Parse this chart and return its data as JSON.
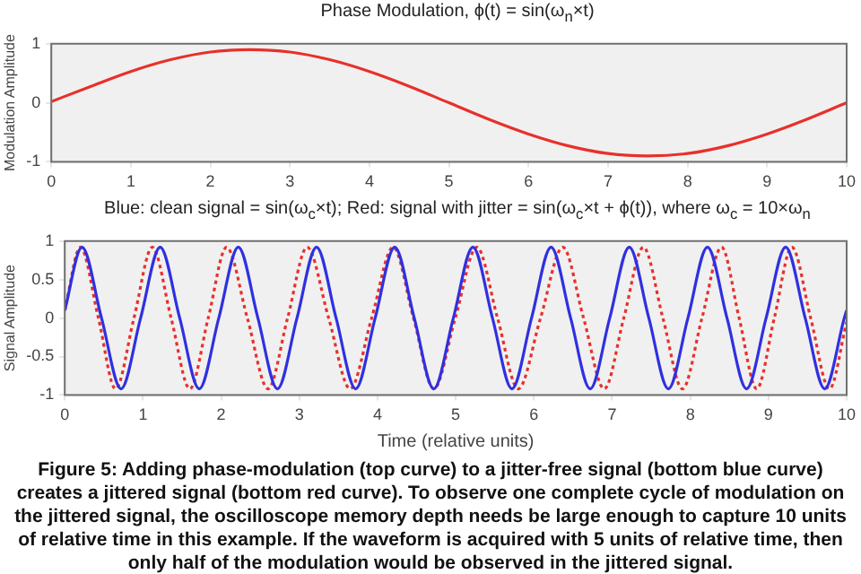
{
  "chart_data": [
    {
      "type": "line",
      "title": "Phase Modulation, ϕ(t) = sin(ω$_{n}$×t)",
      "ylabel": "Modulation Amplitude",
      "xlim": [
        0,
        10
      ],
      "xticks": [
        0,
        1,
        2,
        3,
        4,
        5,
        6,
        7,
        8,
        9,
        10
      ],
      "ylim": [
        -1,
        1
      ],
      "yticks": [
        -1,
        0,
        1
      ],
      "grid": false,
      "legend": false,
      "series": [
        {
          "color": "#e8302a",
          "x": [
            0,
            0.5,
            1,
            1.5,
            2,
            2.5,
            3,
            3.5,
            4,
            4.5,
            5,
            5.5,
            6,
            6.5,
            7,
            7.5,
            8,
            8.5,
            9,
            9.5,
            10
          ],
          "values": [
            0.02,
            0.28,
            0.53,
            0.73,
            0.86,
            0.9,
            0.86,
            0.73,
            0.53,
            0.28,
            0,
            -0.28,
            -0.53,
            -0.73,
            -0.86,
            -0.9,
            -0.86,
            -0.73,
            -0.53,
            -0.28,
            0
          ]
        }
      ]
    },
    {
      "type": "line",
      "title": "Blue: clean signal = sin(ω$_{c}$×t); Red: signal with jitter = sin(ω$_{c}$×t + ϕ(t)), where ω$_{c}$ = 10×ω$_{n}$",
      "xlabel": "Time (relative units)",
      "ylabel": "Signal Amplitude",
      "xlim": [
        0,
        10
      ],
      "xticks": [
        0,
        1,
        2,
        3,
        4,
        5,
        6,
        7,
        8,
        9,
        10
      ],
      "ylim": [
        -1,
        1
      ],
      "yticks": [
        -1,
        -0.5,
        0,
        0.5,
        1
      ],
      "grid": false,
      "legend": false,
      "annotations": [
        "Figure 5: Adding phase-modulation (top curve) to a jitter-free signal (bottom blue curve) creates a jittered signal (bottom red curve). To observe one complete cycle of modulation on the jittered signal, the oscilloscope memory depth needs be large enough to capture 10 units of relative time in this example. If the waveform is acquired with 5 units of relative time, then only half of the modulation would be observed in the jittered signal."
      ],
      "series": [
        {
          "color": "#3030e0",
          "line_style": "solid",
          "x": [
            0,
            0.22,
            0.47,
            0.72,
            0.97,
            1.22,
            1.47,
            1.72,
            1.97,
            2.22,
            2.47,
            2.72,
            2.97,
            3.22,
            3.47,
            3.72,
            3.97,
            4.22,
            4.47,
            4.72,
            4.97,
            5.22,
            5.47,
            5.72,
            5.97,
            6.22,
            6.47,
            6.72,
            6.97,
            7.22,
            7.47,
            7.72,
            7.97,
            8.22,
            8.47,
            8.72,
            8.97,
            9.22,
            9.47,
            9.72,
            9.97,
            10
          ],
          "values": [
            0.1,
            0.92,
            0,
            -0.92,
            0,
            0.92,
            0,
            -0.92,
            0,
            0.92,
            0,
            -0.92,
            0,
            0.92,
            0,
            -0.92,
            0,
            0.92,
            0,
            -0.92,
            0,
            0.92,
            0,
            -0.92,
            0,
            0.92,
            0,
            -0.92,
            0,
            0.92,
            0,
            -0.92,
            0,
            0.92,
            0,
            -0.92,
            0,
            0.92,
            0,
            -0.92,
            0,
            0.1
          ]
        },
        {
          "color": "#e8302a",
          "line_style": "dotted",
          "x": [
            0,
            0.2,
            0.43,
            0.65,
            0.885,
            1.12,
            1.36,
            1.6,
            1.835,
            2.07,
            2.335,
            2.6,
            2.85,
            3.1,
            3.375,
            3.65,
            3.925,
            4.2,
            4.46,
            4.72,
            4.995,
            5.27,
            5.535,
            5.8,
            6.085,
            6.37,
            6.635,
            6.9,
            7.15,
            7.4,
            7.65,
            7.9,
            8.15,
            8.4,
            8.625,
            8.85,
            9.075,
            9.3,
            9.54,
            9.78,
            10
          ],
          "values": [
            0.1,
            0.92,
            0,
            -0.92,
            0,
            0.92,
            0,
            -0.92,
            0,
            0.92,
            0,
            -0.92,
            0,
            0.92,
            0,
            -0.92,
            0,
            0.92,
            0,
            -0.92,
            0,
            0.92,
            0,
            -0.92,
            0,
            0.92,
            0,
            -0.92,
            0,
            0.92,
            0,
            -0.92,
            0,
            0.92,
            0,
            -0.92,
            0,
            0.92,
            0,
            -0.92,
            -0.05
          ]
        }
      ]
    }
  ]
}
